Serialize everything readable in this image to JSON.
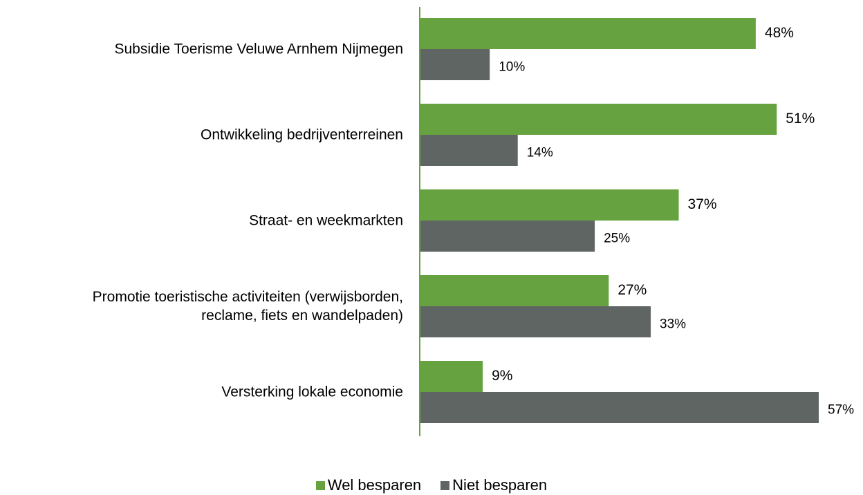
{
  "chart_data": {
    "type": "bar",
    "orientation": "horizontal",
    "categories": [
      "Subsidie Toerisme Veluwe Arnhem Nijmegen",
      "Ontwikkeling bedrijventerreinen",
      "Straat- en weekmarkten",
      "Promotie toeristische activiteiten (verwijsborden,\nreclame, fiets en wandelpaden)",
      "Versterking lokale economie"
    ],
    "series": [
      {
        "name": "Wel besparen",
        "color": "#66a340",
        "values": [
          48,
          51,
          37,
          27,
          9
        ],
        "value_labels": [
          "48%",
          "51%",
          "37%",
          "27%",
          "9%"
        ]
      },
      {
        "name": "Niet besparen",
        "color": "#5f6563",
        "values": [
          10,
          14,
          25,
          33,
          57
        ],
        "value_labels": [
          "10%",
          "14%",
          "25%",
          "33%",
          "57%"
        ]
      }
    ],
    "legend": "bottom"
  }
}
